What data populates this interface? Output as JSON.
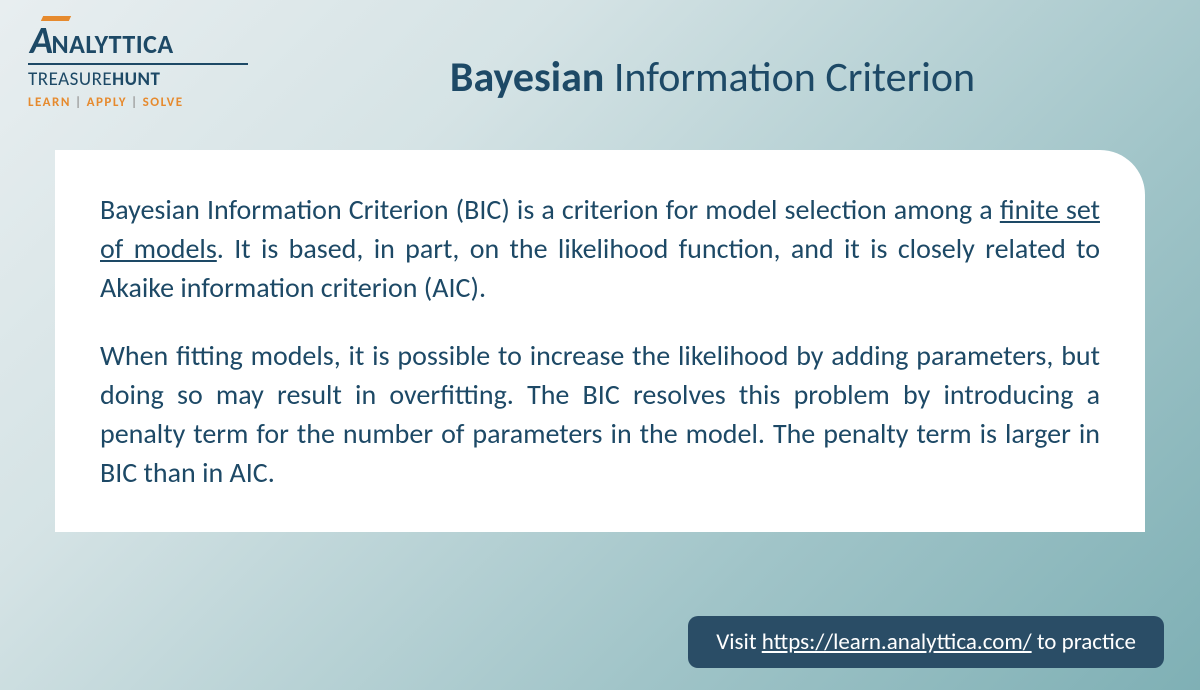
{
  "logo": {
    "main_prefix": "A",
    "main_rest": "NALYTTICA",
    "sub_light": "TREASURE",
    "sub_bold": "HUNT",
    "tag_1": "LEARN",
    "tag_2": "APPLY",
    "tag_3": "SOLVE"
  },
  "title": {
    "bold": "Bayesian",
    "rest": " Information Criterion"
  },
  "content": {
    "p1_a": "Bayesian Information Criterion (BIC) is a criterion for model selection among a ",
    "p1_u": "finite set of models",
    "p1_b": ". It is based, in part, on the likelihood function, and it is closely related to Akaike information criterion (AIC).",
    "p2": "When fitting models, it is possible to increase the likelihood by adding parameters, but doing so may result in overfitting. The BIC resolves this problem by introducing a penalty term for the number of parameters in the model. The penalty term is larger in BIC than in AIC."
  },
  "cta": {
    "pre": "Visit ",
    "url": "https://learn.analyttica.com/",
    "post": " to practice"
  },
  "colors": {
    "brand_dark": "#1d4966",
    "brand_orange": "#e68a2e",
    "cta_bg": "#2a4d66",
    "white": "#ffffff"
  }
}
